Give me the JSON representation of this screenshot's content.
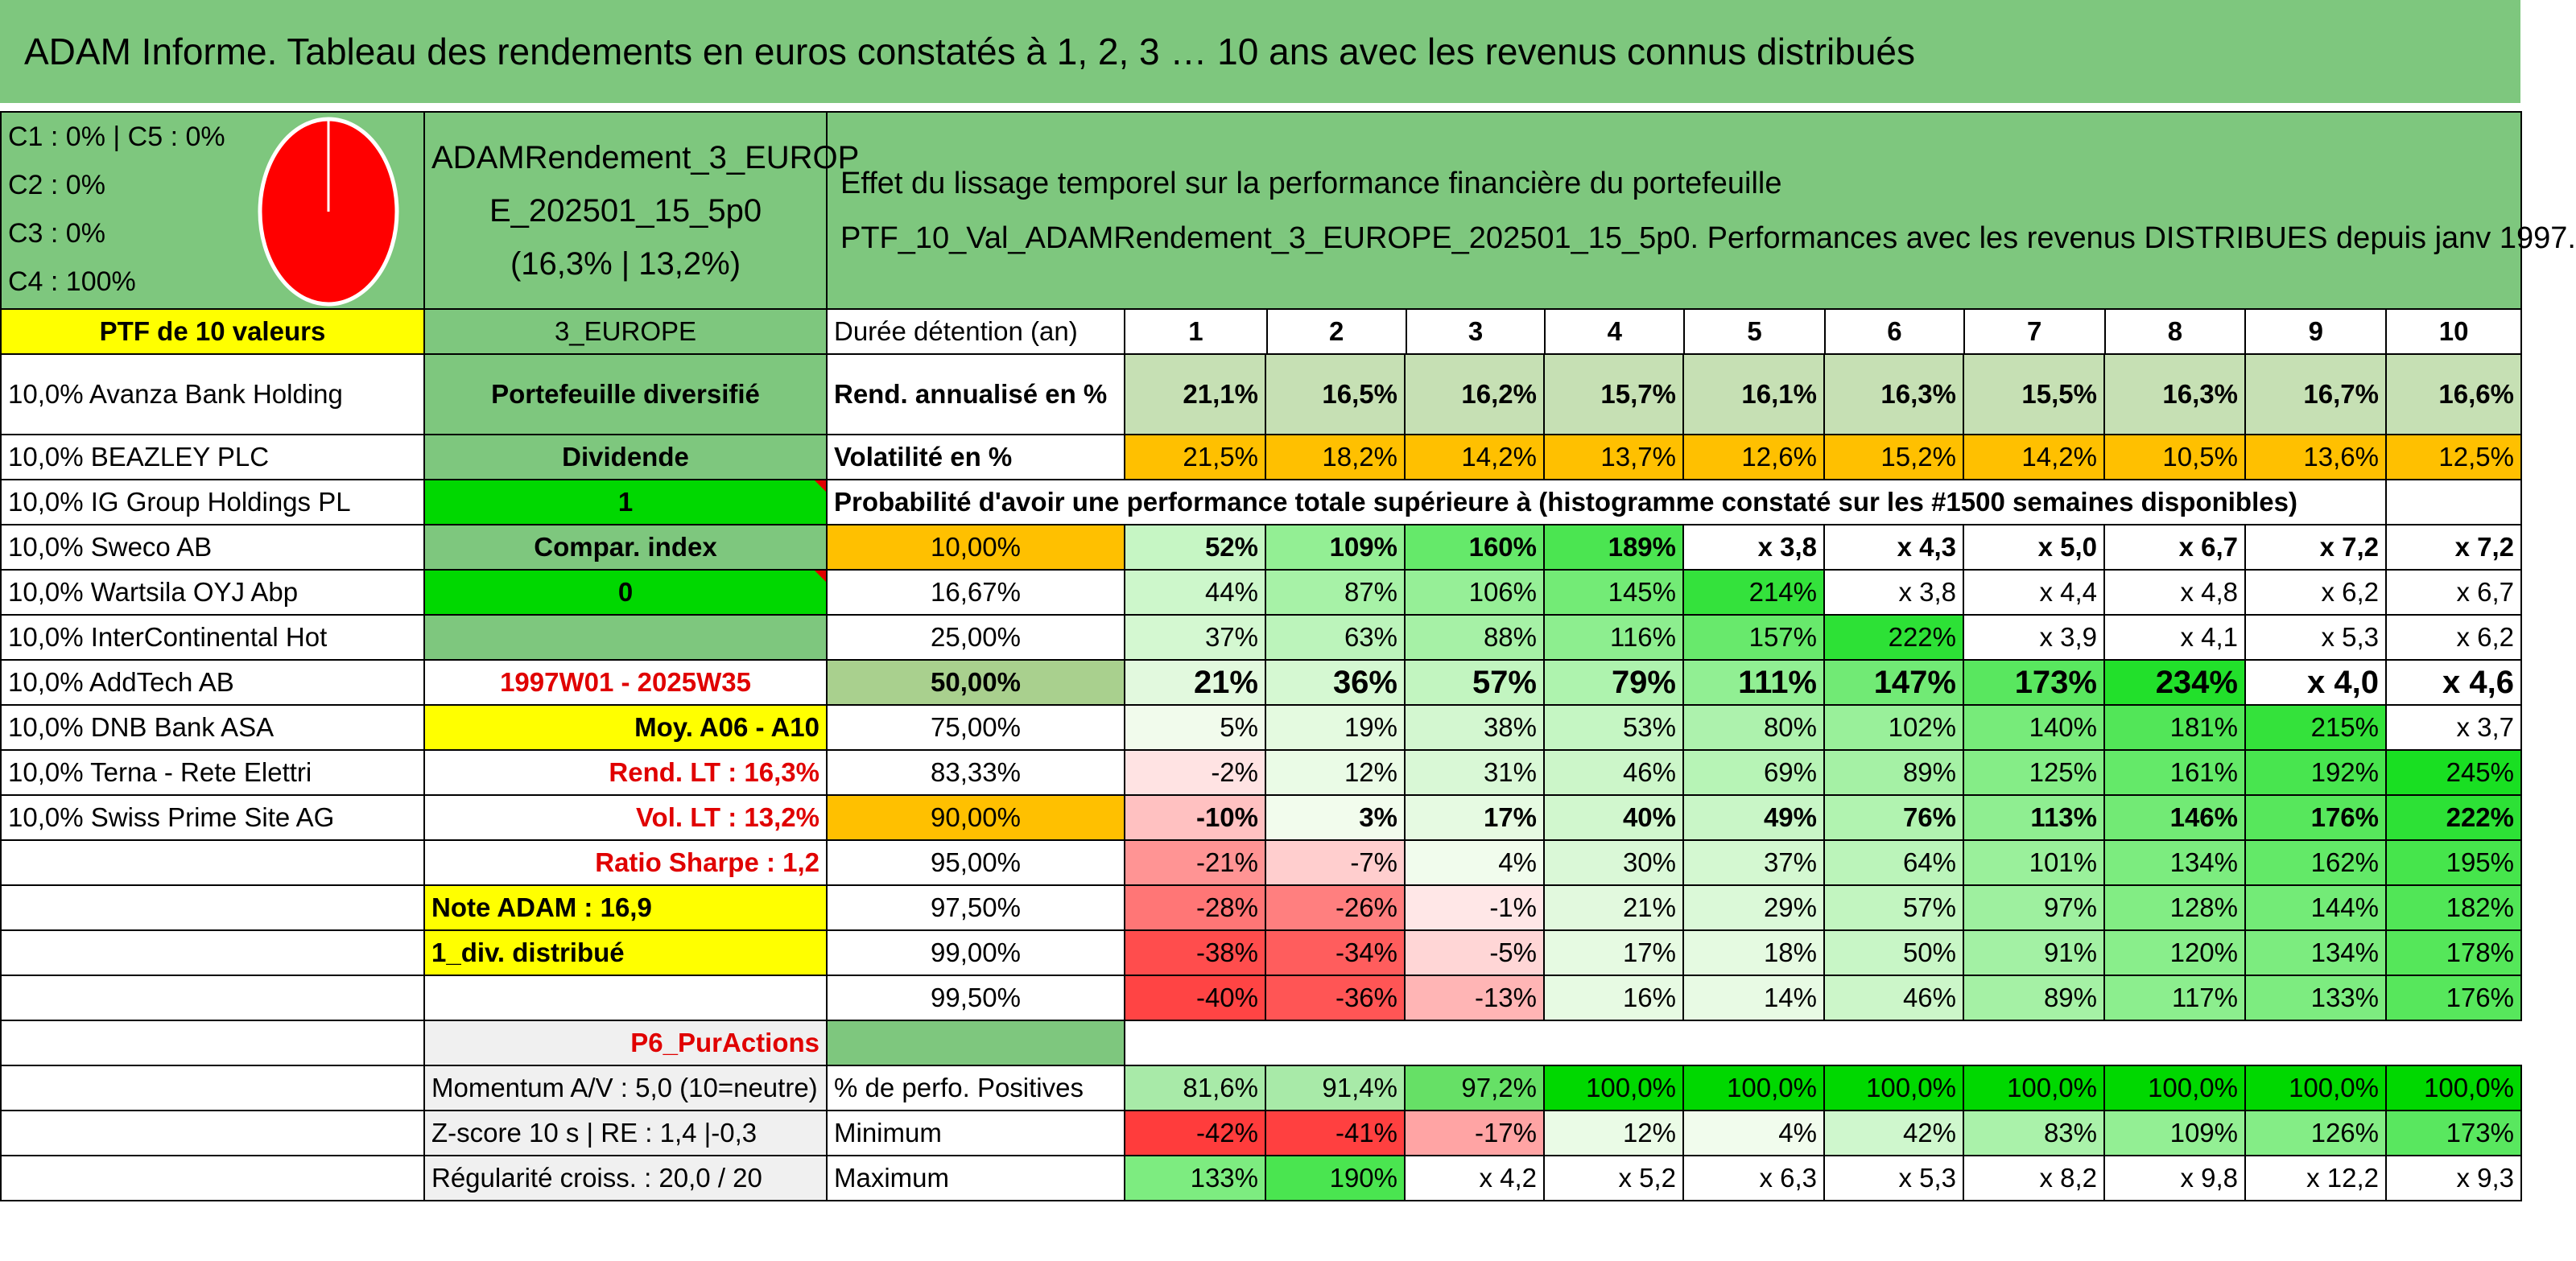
{
  "title": "ADAM Informe. Tableau des rendements en euros constatés à 1, 2, 3 … 10 ans avec les revenus connus distribués",
  "legend": [
    "C1 : 0% | C5 : 0%",
    "C2 : 0%",
    "C3 : 0%",
    "C4 : 100%"
  ],
  "pie": {
    "color": "#ff0000",
    "value": 1.0
  },
  "portfolio_name": [
    "ADAMRendement_3_EUROP",
    "E_202501_15_5p0",
    "(16,3% | 13,2%)"
  ],
  "effect_title": [
    "Effet du lissage temporel sur la performance financière du portefeuille",
    "PTF_10_Val_ADAMRendement_3_EUROPE_202501_15_5p0. Performances avec les revenus DISTRIBUES depuis janv 1997."
  ],
  "ptf_label": "PTF de 10 valeurs",
  "region": "3_EUROPE",
  "duration_label": "Durée détention (an)",
  "years": [
    "1",
    "2",
    "3",
    "4",
    "5",
    "6",
    "7",
    "8",
    "9",
    "10"
  ],
  "holdings": [
    "10,0% Avanza Bank Holding",
    "10,0% BEAZLEY PLC",
    "10,0% IG Group Holdings PL",
    "10,0% Sweco AB",
    "10,0% Wartsila OYJ Abp",
    "10,0% InterContinental Hot",
    "10,0% AddTech AB",
    "10,0% DNB Bank ASA",
    "10,0% Terna - Rete Elettri",
    "10,0% Swiss Prime Site AG"
  ],
  "side": {
    "diversified": "Portefeuille diversifié",
    "dividend": "Dividende",
    "one": "1",
    "compar": "Compar. index",
    "zero": "0",
    "period": "1997W01 - 2025W35",
    "moy": "Moy. A06 - A10",
    "rend_lt": "Rend. LT : 16,3%",
    "vol_lt": "Vol. LT : 13,2%",
    "sharpe": "Ratio Sharpe : 1,2",
    "note": "Note ADAM : 16,9",
    "div": "1_div. distribué",
    "p6": "P6_PurActions",
    "momentum": "Momentum A/V : 5,0 (10=neutre)",
    "zscore": "Z-score 10 s | RE : 1,4 |-0,3",
    "regularite": "Régularité croiss. : 20,0 / 20"
  },
  "rend": {
    "label": "Rend. annualisé en %",
    "values": [
      "21,1%",
      "16,5%",
      "16,2%",
      "15,7%",
      "16,1%",
      "16,3%",
      "15,5%",
      "16,3%",
      "16,7%",
      "16,6%"
    ]
  },
  "vol": {
    "label": "Volatilité en %",
    "values": [
      "21,5%",
      "18,2%",
      "14,2%",
      "13,7%",
      "12,6%",
      "15,2%",
      "14,2%",
      "10,5%",
      "13,6%",
      "12,5%"
    ]
  },
  "prob_title": "Probabilité d'avoir une performance totale supérieure à (histogramme constaté sur les #1500 semaines disponibles)",
  "prob_rows": [
    {
      "p": "10,00%",
      "v": [
        "52%",
        "109%",
        "160%",
        "189%",
        "x 3,8",
        "x 4,3",
        "x 5,0",
        "x 6,7",
        "x 7,2",
        "x 7,2"
      ]
    },
    {
      "p": "16,67%",
      "v": [
        "44%",
        "87%",
        "106%",
        "145%",
        "214%",
        "x 3,8",
        "x 4,4",
        "x 4,8",
        "x 6,2",
        "x 6,7"
      ]
    },
    {
      "p": "25,00%",
      "v": [
        "37%",
        "63%",
        "88%",
        "116%",
        "157%",
        "222%",
        "x 3,9",
        "x 4,1",
        "x 5,3",
        "x 6,2"
      ]
    },
    {
      "p": "50,00%",
      "v": [
        "21%",
        "36%",
        "57%",
        "79%",
        "111%",
        "147%",
        "173%",
        "234%",
        "x 4,0",
        "x 4,6"
      ]
    },
    {
      "p": "75,00%",
      "v": [
        "5%",
        "19%",
        "38%",
        "53%",
        "80%",
        "102%",
        "140%",
        "181%",
        "215%",
        "x 3,7"
      ]
    },
    {
      "p": "83,33%",
      "v": [
        "-2%",
        "12%",
        "31%",
        "46%",
        "69%",
        "89%",
        "125%",
        "161%",
        "192%",
        "245%"
      ]
    },
    {
      "p": "90,00%",
      "v": [
        "-10%",
        "3%",
        "17%",
        "40%",
        "49%",
        "76%",
        "113%",
        "146%",
        "176%",
        "222%"
      ]
    },
    {
      "p": "95,00%",
      "v": [
        "-21%",
        "-7%",
        "4%",
        "30%",
        "37%",
        "64%",
        "101%",
        "134%",
        "162%",
        "195%"
      ]
    },
    {
      "p": "97,50%",
      "v": [
        "-28%",
        "-26%",
        "-1%",
        "21%",
        "29%",
        "57%",
        "97%",
        "128%",
        "144%",
        "182%"
      ]
    },
    {
      "p": "99,00%",
      "v": [
        "-38%",
        "-34%",
        "-5%",
        "17%",
        "18%",
        "50%",
        "91%",
        "120%",
        "134%",
        "178%"
      ]
    },
    {
      "p": "99,50%",
      "v": [
        "-40%",
        "-36%",
        "-13%",
        "16%",
        "14%",
        "46%",
        "89%",
        "117%",
        "133%",
        "176%"
      ]
    }
  ],
  "positives": {
    "label": "% de perfo. Positives",
    "values": [
      "81,6%",
      "91,4%",
      "97,2%",
      "100,0%",
      "100,0%",
      "100,0%",
      "100,0%",
      "100,0%",
      "100,0%",
      "100,0%"
    ]
  },
  "minimum": {
    "label": "Minimum",
    "values": [
      "-42%",
      "-41%",
      "-17%",
      "12%",
      "4%",
      "42%",
      "83%",
      "109%",
      "126%",
      "173%"
    ]
  },
  "maximum": {
    "label": "Maximum",
    "values": [
      "133%",
      "190%",
      "x 4,2",
      "x 5,2",
      "x 6,3",
      "x 5,3",
      "x 8,2",
      "x 9,8",
      "x 12,2",
      "x 9,3"
    ]
  }
}
